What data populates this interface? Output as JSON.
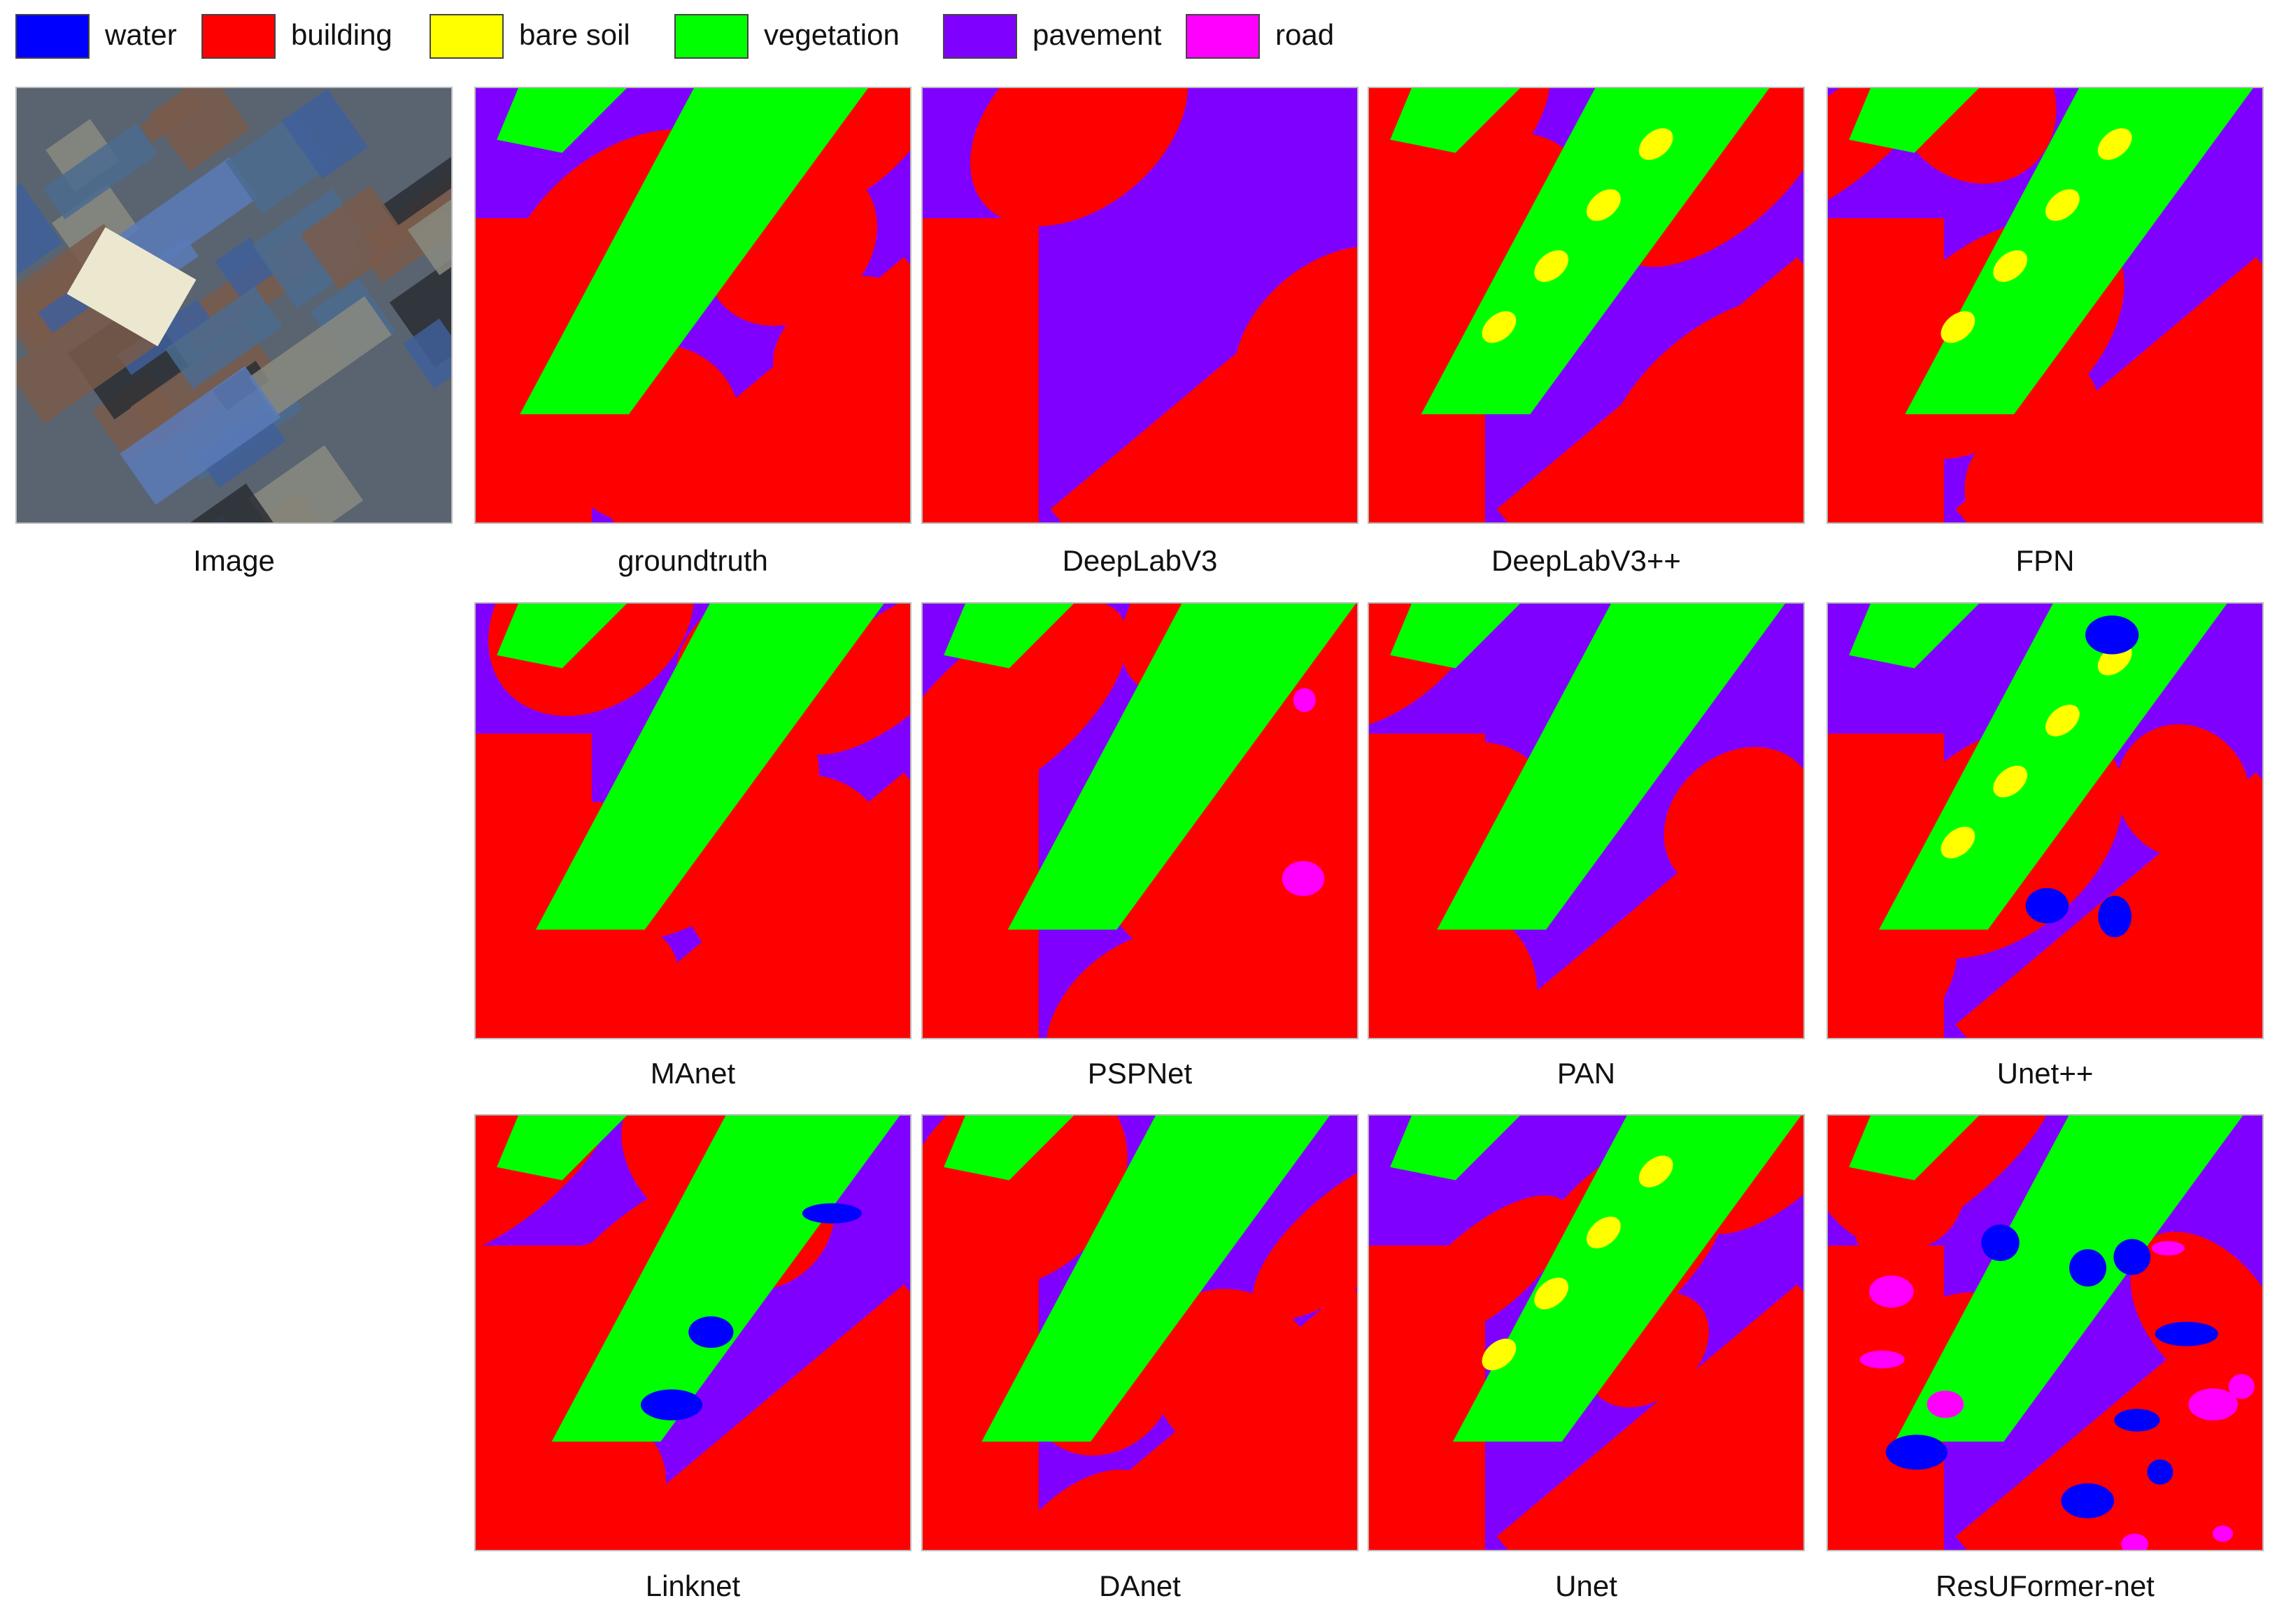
{
  "legend": [
    {
      "label": "water",
      "color": "#0000ff"
    },
    {
      "label": "building",
      "color": "#ff0000"
    },
    {
      "label": "bare soil",
      "color": "#ffff00"
    },
    {
      "label": "vegetation",
      "color": "#00ff00"
    },
    {
      "label": "pavement",
      "color": "#8000ff"
    },
    {
      "label": "road",
      "color": "#ff00ff"
    }
  ],
  "panels": [
    {
      "caption": "Image"
    },
    {
      "caption": "groundtruth"
    },
    {
      "caption": "DeepLabV3"
    },
    {
      "caption": "DeepLabV3++"
    },
    {
      "caption": "FPN"
    },
    {
      "caption": "MAnet"
    },
    {
      "caption": "PSPNet"
    },
    {
      "caption": "PAN"
    },
    {
      "caption": "Unet++"
    },
    {
      "caption": "Linknet"
    },
    {
      "caption": "DAnet"
    },
    {
      "caption": "Unet"
    },
    {
      "caption": "ResUFormer-net"
    }
  ]
}
